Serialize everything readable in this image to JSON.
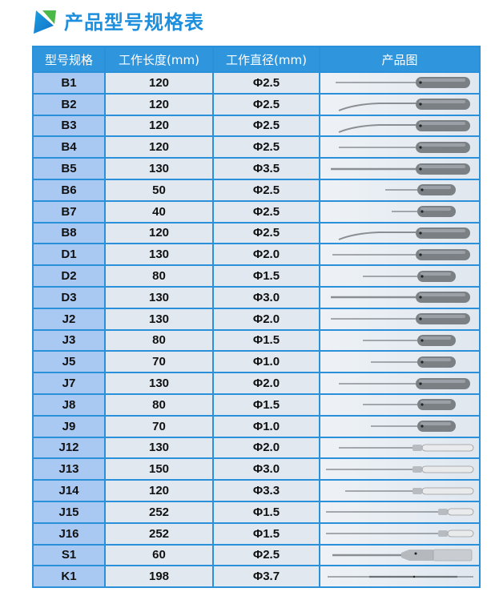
{
  "title": "产品型号规格表",
  "colors": {
    "accent": "#2f95dc",
    "model_cell": "#a9c8f2",
    "cell": "#e1e8f0",
    "logo_green": "#4cb848"
  },
  "table": {
    "headers": [
      "型号规格",
      "工作长度(mm)",
      "工作直径(mm)",
      "产品图"
    ],
    "rows": [
      {
        "model": "B1",
        "length": "120",
        "diameter": "Φ2.5",
        "icon": "screwdriver-dark-handle"
      },
      {
        "model": "B2",
        "length": "120",
        "diameter": "Φ2.5",
        "icon": "screwdriver-dark-handle-bent"
      },
      {
        "model": "B3",
        "length": "120",
        "diameter": "Φ2.5",
        "icon": "screwdriver-dark-handle-bent"
      },
      {
        "model": "B4",
        "length": "120",
        "diameter": "Φ2.5",
        "icon": "screwdriver-dark-handle"
      },
      {
        "model": "B5",
        "length": "130",
        "diameter": "Φ3.5",
        "icon": "screwdriver-dark-handle"
      },
      {
        "model": "B6",
        "length": "50",
        "diameter": "Φ2.5",
        "icon": "screwdriver-dark-handle-short"
      },
      {
        "model": "B7",
        "length": "40",
        "diameter": "Φ2.5",
        "icon": "screwdriver-dark-handle-short"
      },
      {
        "model": "B8",
        "length": "120",
        "diameter": "Φ2.5",
        "icon": "screwdriver-dark-handle-bent"
      },
      {
        "model": "D1",
        "length": "130",
        "diameter": "Φ2.0",
        "icon": "screwdriver-dark-handle"
      },
      {
        "model": "D2",
        "length": "80",
        "diameter": "Φ1.5",
        "icon": "screwdriver-dark-handle-short"
      },
      {
        "model": "D3",
        "length": "130",
        "diameter": "Φ3.0",
        "icon": "screwdriver-dark-handle"
      },
      {
        "model": "J2",
        "length": "130",
        "diameter": "Φ2.0",
        "icon": "screwdriver-dark-handle"
      },
      {
        "model": "J3",
        "length": "80",
        "diameter": "Φ1.5",
        "icon": "screwdriver-dark-handle-short"
      },
      {
        "model": "J5",
        "length": "70",
        "diameter": "Φ1.0",
        "icon": "screwdriver-dark-handle-short"
      },
      {
        "model": "J7",
        "length": "130",
        "diameter": "Φ2.0",
        "icon": "screwdriver-dark-handle"
      },
      {
        "model": "J8",
        "length": "80",
        "diameter": "Φ1.5",
        "icon": "screwdriver-dark-handle-short"
      },
      {
        "model": "J9",
        "length": "70",
        "diameter": "Φ1.0",
        "icon": "screwdriver-dark-handle-short"
      },
      {
        "model": "J12",
        "length": "130",
        "diameter": "Φ2.0",
        "icon": "screwdriver-metal-handle"
      },
      {
        "model": "J13",
        "length": "150",
        "diameter": "Φ3.0",
        "icon": "screwdriver-metal-handle"
      },
      {
        "model": "J14",
        "length": "120",
        "diameter": "Φ3.3",
        "icon": "screwdriver-metal-handle"
      },
      {
        "model": "J15",
        "length": "252",
        "diameter": "Φ1.5",
        "icon": "screwdriver-metal-handle-small"
      },
      {
        "model": "J16",
        "length": "252",
        "diameter": "Φ1.5",
        "icon": "screwdriver-metal-handle-small"
      },
      {
        "model": "S1",
        "length": "60",
        "diameter": "Φ2.5",
        "icon": "ratchet-screwdriver"
      },
      {
        "model": "K1",
        "length": "198",
        "diameter": "Φ3.7",
        "icon": "guide-rod"
      }
    ]
  }
}
